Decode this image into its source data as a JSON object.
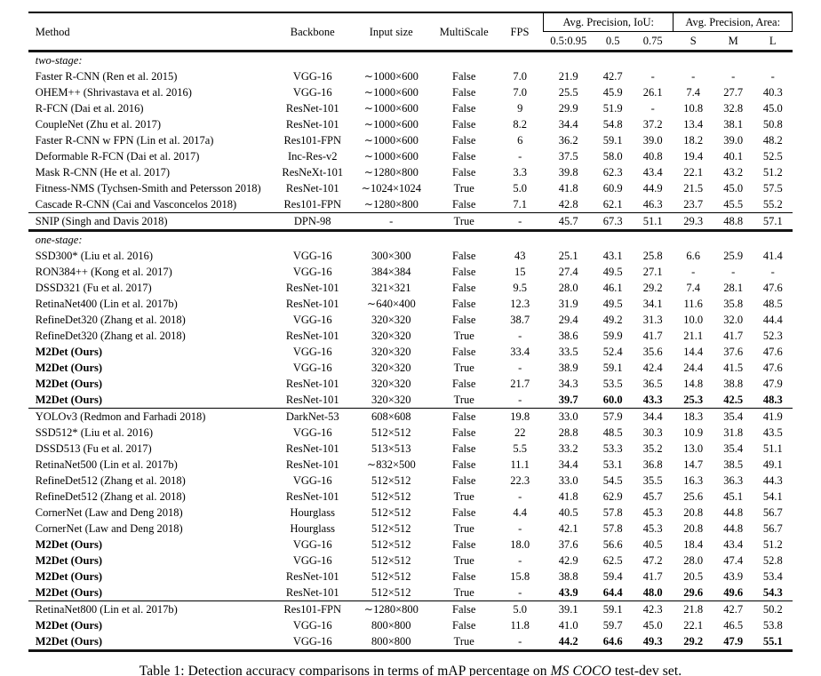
{
  "table": {
    "header": {
      "columns": [
        "Method",
        "Backbone",
        "Input size",
        "MultiScale",
        "FPS"
      ],
      "group_iou": "Avg. Precision, IoU:",
      "group_area": "Avg. Precision, Area:",
      "subcolumns": [
        "0.5:0.95",
        "0.5",
        "0.75",
        "S",
        "M",
        "L"
      ]
    },
    "rows": [
      {
        "type": "section",
        "label": "two-stage:"
      },
      {
        "type": "data",
        "method": "Faster R-CNN (Ren et al. 2015)",
        "backbone": "VGG-16",
        "input": "∼1000×600",
        "multiscale": "False",
        "fps": "7.0",
        "ap": [
          "21.9",
          "42.7",
          "-",
          "-",
          "-",
          "-"
        ]
      },
      {
        "type": "data",
        "method": "OHEM++ (Shrivastava et al. 2016)",
        "backbone": "VGG-16",
        "input": "∼1000×600",
        "multiscale": "False",
        "fps": "7.0",
        "ap": [
          "25.5",
          "45.9",
          "26.1",
          "7.4",
          "27.7",
          "40.3"
        ]
      },
      {
        "type": "data",
        "method": "R-FCN (Dai et al. 2016)",
        "backbone": "ResNet-101",
        "input": "∼1000×600",
        "multiscale": "False",
        "fps": "9",
        "ap": [
          "29.9",
          "51.9",
          "-",
          "10.8",
          "32.8",
          "45.0"
        ]
      },
      {
        "type": "data",
        "method": "CoupleNet (Zhu et al. 2017)",
        "backbone": "ResNet-101",
        "input": "∼1000×600",
        "multiscale": "False",
        "fps": "8.2",
        "ap": [
          "34.4",
          "54.8",
          "37.2",
          "13.4",
          "38.1",
          "50.8"
        ]
      },
      {
        "type": "data",
        "method": "Faster R-CNN w FPN (Lin et al. 2017a)",
        "backbone": "Res101-FPN",
        "input": "∼1000×600",
        "multiscale": "False",
        "fps": "6",
        "ap": [
          "36.2",
          "59.1",
          "39.0",
          "18.2",
          "39.0",
          "48.2"
        ]
      },
      {
        "type": "data",
        "method": "Deformable R-FCN (Dai et al. 2017)",
        "backbone": "Inc-Res-v2",
        "input": "∼1000×600",
        "multiscale": "False",
        "fps": "-",
        "ap": [
          "37.5",
          "58.0",
          "40.8",
          "19.4",
          "40.1",
          "52.5"
        ]
      },
      {
        "type": "data",
        "method": "Mask R-CNN (He et al. 2017)",
        "backbone": "ResNeXt-101",
        "input": "∼1280×800",
        "multiscale": "False",
        "fps": "3.3",
        "ap": [
          "39.8",
          "62.3",
          "43.4",
          "22.1",
          "43.2",
          "51.2"
        ]
      },
      {
        "type": "data",
        "method": "Fitness-NMS (Tychsen-Smith and Petersson 2018)",
        "backbone": "ResNet-101",
        "input": "∼1024×1024",
        "multiscale": "True",
        "fps": "5.0",
        "ap": [
          "41.8",
          "60.9",
          "44.9",
          "21.5",
          "45.0",
          "57.5"
        ]
      },
      {
        "type": "data",
        "method": "Cascade R-CNN (Cai and Vasconcelos 2018)",
        "backbone": "Res101-FPN",
        "input": "∼1280×800",
        "multiscale": "False",
        "fps": "7.1",
        "ap": [
          "42.8",
          "62.1",
          "46.3",
          "23.7",
          "45.5",
          "55.2"
        ]
      },
      {
        "type": "data",
        "rule": "thin",
        "method": "SNIP (Singh and Davis 2018)",
        "backbone": "DPN-98",
        "input": "-",
        "multiscale": "True",
        "fps": "-",
        "ap": [
          "45.7",
          "67.3",
          "51.1",
          "29.3",
          "48.8",
          "57.1"
        ]
      },
      {
        "type": "section",
        "rule": "thick",
        "label": "one-stage:"
      },
      {
        "type": "data",
        "method": "SSD300* (Liu et al. 2016)",
        "backbone": "VGG-16",
        "input": "300×300",
        "multiscale": "False",
        "fps": "43",
        "ap": [
          "25.1",
          "43.1",
          "25.8",
          "6.6",
          "25.9",
          "41.4"
        ]
      },
      {
        "type": "data",
        "method": "RON384++ (Kong et al. 2017)",
        "backbone": "VGG-16",
        "input": "384×384",
        "multiscale": "False",
        "fps": "15",
        "ap": [
          "27.4",
          "49.5",
          "27.1",
          "-",
          "-",
          "-"
        ]
      },
      {
        "type": "data",
        "method": "DSSD321 (Fu et al. 2017)",
        "backbone": "ResNet-101",
        "input": "321×321",
        "multiscale": "False",
        "fps": "9.5",
        "ap": [
          "28.0",
          "46.1",
          "29.2",
          "7.4",
          "28.1",
          "47.6"
        ]
      },
      {
        "type": "data",
        "method": "RetinaNet400 (Lin et al. 2017b)",
        "backbone": "ResNet-101",
        "input": "∼640×400",
        "multiscale": "False",
        "fps": "12.3",
        "ap": [
          "31.9",
          "49.5",
          "34.1",
          "11.6",
          "35.8",
          "48.5"
        ]
      },
      {
        "type": "data",
        "method": "RefineDet320 (Zhang et al. 2018)",
        "backbone": "VGG-16",
        "input": "320×320",
        "multiscale": "False",
        "fps": "38.7",
        "ap": [
          "29.4",
          "49.2",
          "31.3",
          "10.0",
          "32.0",
          "44.4"
        ]
      },
      {
        "type": "data",
        "method": "RefineDet320 (Zhang et al. 2018)",
        "backbone": "ResNet-101",
        "input": "320×320",
        "multiscale": "True",
        "fps": "-",
        "ap": [
          "38.6",
          "59.9",
          "41.7",
          "21.1",
          "41.7",
          "52.3"
        ]
      },
      {
        "type": "data",
        "bold": true,
        "method": "M2Det (Ours)",
        "backbone": "VGG-16",
        "input": "320×320",
        "multiscale": "False",
        "fps": "33.4",
        "ap": [
          "33.5",
          "52.4",
          "35.6",
          "14.4",
          "37.6",
          "47.6"
        ]
      },
      {
        "type": "data",
        "bold": true,
        "method": "M2Det (Ours)",
        "backbone": "VGG-16",
        "input": "320×320",
        "multiscale": "True",
        "fps": "-",
        "ap": [
          "38.9",
          "59.1",
          "42.4",
          "24.4",
          "41.5",
          "47.6"
        ]
      },
      {
        "type": "data",
        "bold": true,
        "method": "M2Det (Ours)",
        "backbone": "ResNet-101",
        "input": "320×320",
        "multiscale": "False",
        "fps": "21.7",
        "ap": [
          "34.3",
          "53.5",
          "36.5",
          "14.8",
          "38.8",
          "47.9"
        ]
      },
      {
        "type": "data",
        "bold": true,
        "bold_ap": true,
        "method": "M2Det (Ours)",
        "backbone": "ResNet-101",
        "input": "320×320",
        "multiscale": "True",
        "fps": "-",
        "ap": [
          "39.7",
          "60.0",
          "43.3",
          "25.3",
          "42.5",
          "48.3"
        ]
      },
      {
        "type": "data",
        "rule": "thin",
        "method": "YOLOv3 (Redmon and Farhadi 2018)",
        "backbone": "DarkNet-53",
        "input": "608×608",
        "multiscale": "False",
        "fps": "19.8",
        "ap": [
          "33.0",
          "57.9",
          "34.4",
          "18.3",
          "35.4",
          "41.9"
        ]
      },
      {
        "type": "data",
        "method": "SSD512* (Liu et al. 2016)",
        "backbone": "VGG-16",
        "input": "512×512",
        "multiscale": "False",
        "fps": "22",
        "ap": [
          "28.8",
          "48.5",
          "30.3",
          "10.9",
          "31.8",
          "43.5"
        ]
      },
      {
        "type": "data",
        "method": "DSSD513 (Fu et al. 2017)",
        "backbone": "ResNet-101",
        "input": "513×513",
        "multiscale": "False",
        "fps": "5.5",
        "ap": [
          "33.2",
          "53.3",
          "35.2",
          "13.0",
          "35.4",
          "51.1"
        ]
      },
      {
        "type": "data",
        "method": "RetinaNet500 (Lin et al. 2017b)",
        "backbone": "ResNet-101",
        "input": "∼832×500",
        "multiscale": "False",
        "fps": "11.1",
        "ap": [
          "34.4",
          "53.1",
          "36.8",
          "14.7",
          "38.5",
          "49.1"
        ]
      },
      {
        "type": "data",
        "method": "RefineDet512 (Zhang et al. 2018)",
        "backbone": "VGG-16",
        "input": "512×512",
        "multiscale": "False",
        "fps": "22.3",
        "ap": [
          "33.0",
          "54.5",
          "35.5",
          "16.3",
          "36.3",
          "44.3"
        ]
      },
      {
        "type": "data",
        "method": "RefineDet512 (Zhang et al. 2018)",
        "backbone": "ResNet-101",
        "input": "512×512",
        "multiscale": "True",
        "fps": "-",
        "ap": [
          "41.8",
          "62.9",
          "45.7",
          "25.6",
          "45.1",
          "54.1"
        ]
      },
      {
        "type": "data",
        "method": "CornerNet (Law and Deng 2018)",
        "backbone": "Hourglass",
        "input": "512×512",
        "multiscale": "False",
        "fps": "4.4",
        "ap": [
          "40.5",
          "57.8",
          "45.3",
          "20.8",
          "44.8",
          "56.7"
        ]
      },
      {
        "type": "data",
        "method": "CornerNet (Law and Deng 2018)",
        "backbone": "Hourglass",
        "input": "512×512",
        "multiscale": "True",
        "fps": "-",
        "ap": [
          "42.1",
          "57.8",
          "45.3",
          "20.8",
          "44.8",
          "56.7"
        ]
      },
      {
        "type": "data",
        "bold": true,
        "method": "M2Det (Ours)",
        "backbone": "VGG-16",
        "input": "512×512",
        "multiscale": "False",
        "fps": "18.0",
        "ap": [
          "37.6",
          "56.6",
          "40.5",
          "18.4",
          "43.4",
          "51.2"
        ]
      },
      {
        "type": "data",
        "bold": true,
        "method": "M2Det (Ours)",
        "backbone": "VGG-16",
        "input": "512×512",
        "multiscale": "True",
        "fps": "-",
        "ap": [
          "42.9",
          "62.5",
          "47.2",
          "28.0",
          "47.4",
          "52.8"
        ]
      },
      {
        "type": "data",
        "bold": true,
        "method": "M2Det (Ours)",
        "backbone": "ResNet-101",
        "input": "512×512",
        "multiscale": "False",
        "fps": "15.8",
        "ap": [
          "38.8",
          "59.4",
          "41.7",
          "20.5",
          "43.9",
          "53.4"
        ]
      },
      {
        "type": "data",
        "bold": true,
        "bold_ap": true,
        "method": "M2Det (Ours)",
        "backbone": "ResNet-101",
        "input": "512×512",
        "multiscale": "True",
        "fps": "-",
        "ap": [
          "43.9",
          "64.4",
          "48.0",
          "29.6",
          "49.6",
          "54.3"
        ]
      },
      {
        "type": "data",
        "rule": "thin",
        "method": "RetinaNet800 (Lin et al. 2017b)",
        "backbone": "Res101-FPN",
        "input": "∼1280×800",
        "multiscale": "False",
        "fps": "5.0",
        "ap": [
          "39.1",
          "59.1",
          "42.3",
          "21.8",
          "42.7",
          "50.2"
        ]
      },
      {
        "type": "data",
        "bold": true,
        "method": "M2Det (Ours)",
        "backbone": "VGG-16",
        "input": "800×800",
        "multiscale": "False",
        "fps": "11.8",
        "ap": [
          "41.0",
          "59.7",
          "45.0",
          "22.1",
          "46.5",
          "53.8"
        ]
      },
      {
        "type": "data",
        "bold": true,
        "bold_ap": true,
        "method": "M2Det (Ours)",
        "backbone": "VGG-16",
        "input": "800×800",
        "multiscale": "True",
        "fps": "-",
        "ap": [
          "44.2",
          "64.6",
          "49.3",
          "29.2",
          "47.9",
          "55.1"
        ]
      }
    ]
  },
  "caption": {
    "prefix": "Table 1: Detection accuracy comparisons in terms of mAP percentage on ",
    "italic": "MS COCO",
    "suffix": " test-dev set."
  }
}
